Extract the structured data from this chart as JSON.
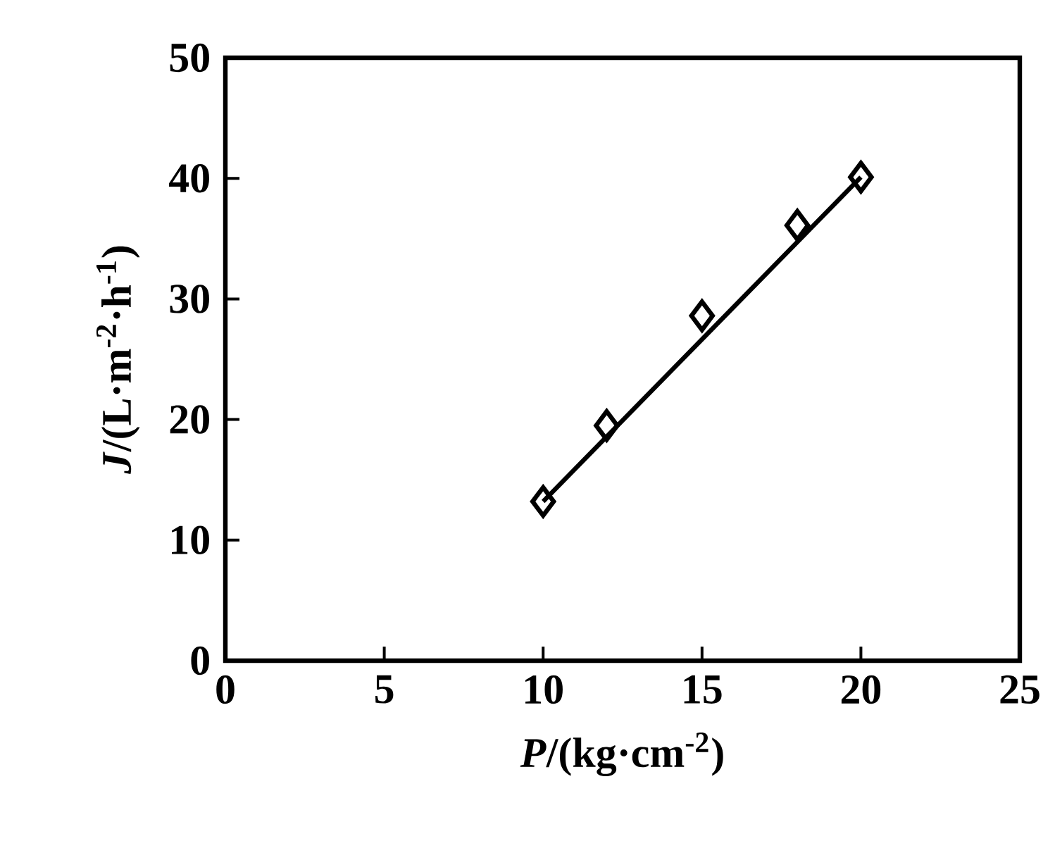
{
  "chart_data": {
    "type": "scatter",
    "xlabel": "*P*/(kg·cm$^{-2}$)",
    "ylabel": "*J*/(L·m$^{-2}$·h$^{-1}$)",
    "xlim": [
      0,
      25
    ],
    "xticks": [
      0,
      5,
      10,
      15,
      20,
      25
    ],
    "ylim": [
      0,
      50
    ],
    "yticks": [
      0,
      10,
      20,
      30,
      40,
      50
    ],
    "grid": false,
    "series": [
      {
        "marker": "diamond",
        "color": "#000000",
        "x": [
          10,
          12,
          15,
          18,
          20
        ],
        "values": [
          13.2,
          19.5,
          28.6,
          36.1,
          40.1
        ]
      },
      {
        "type": "line",
        "marker": "none",
        "line_style": "solid",
        "color": "#000000",
        "x": [
          10,
          20
        ],
        "values": [
          13.2,
          40.1
        ]
      }
    ]
  }
}
